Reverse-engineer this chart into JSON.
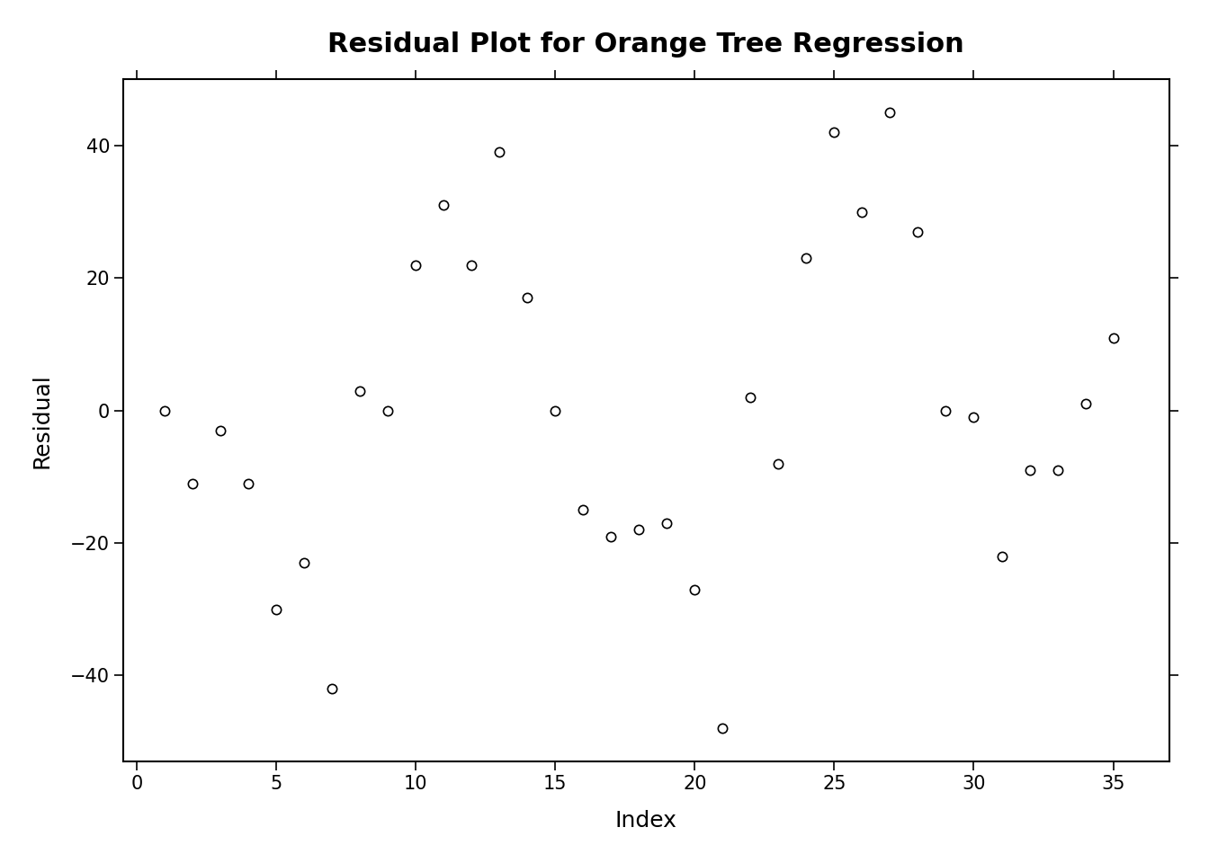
{
  "title": "Residual Plot for Orange Tree Regression",
  "xlabel": "Index",
  "ylabel": "Residual",
  "x": [
    1,
    2,
    3,
    4,
    5,
    6,
    7,
    8,
    9,
    10,
    11,
    12,
    13,
    14,
    15,
    16,
    17,
    18,
    19,
    20,
    21,
    22,
    23,
    24,
    25,
    26,
    27,
    28,
    29,
    30,
    31,
    32,
    33,
    34,
    35
  ],
  "y": [
    0.0,
    -11.0,
    -3.0,
    -11.0,
    -30.0,
    -23.0,
    -42.0,
    3.0,
    0.0,
    22.0,
    31.0,
    22.0,
    39.0,
    17.0,
    0.0,
    -15.0,
    -19.0,
    -18.0,
    -17.0,
    -27.0,
    -48.0,
    2.0,
    -8.0,
    23.0,
    42.0,
    30.0,
    45.0,
    27.0,
    0.0,
    -1.0,
    -22.0,
    -9.0,
    -9.0,
    1.0,
    11.0
  ],
  "xlim": [
    -0.5,
    37
  ],
  "ylim": [
    -53,
    50
  ],
  "xticks": [
    0,
    5,
    10,
    15,
    20,
    25,
    30,
    35
  ],
  "yticks": [
    -40,
    -20,
    0,
    20,
    40
  ],
  "marker_size": 55,
  "marker_facecolor": "white",
  "marker_edgecolor": "black",
  "marker_linewidth": 1.2,
  "background_color": "#ffffff",
  "title_fontsize": 22,
  "axis_label_fontsize": 18,
  "tick_fontsize": 15,
  "spine_linewidth": 1.5
}
